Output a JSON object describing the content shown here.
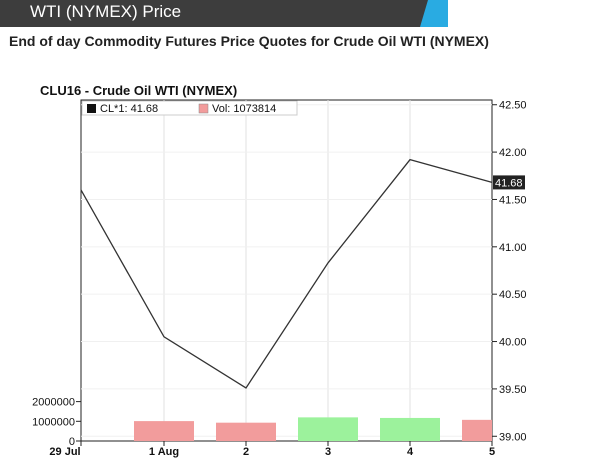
{
  "header": {
    "title": "WTI (NYMEX) Price"
  },
  "subtitle": "End of day Commodity Futures Price Quotes for Crude Oil WTI (NYMEX)",
  "colors": {
    "header_bg": "#3d3d3d",
    "header_accent": "#29abe2",
    "vol_up": "#9cf29c",
    "vol_down": "#f29c9c",
    "price_line": "#333333"
  },
  "chart_data": {
    "type": "line",
    "title": "CLU16 - Crude Oil WTI (NYMEX)",
    "legend": {
      "price": "CL*1: 41.68",
      "volume": "Vol: 1073814",
      "placement": "top-left"
    },
    "last_value_label": "41.68",
    "categories": [
      "29 Jul",
      "1 Aug",
      "2",
      "3",
      "4",
      "5"
    ],
    "series": [
      {
        "name": "CL*1",
        "values": [
          41.6,
          40.05,
          39.51,
          40.83,
          41.92,
          41.68
        ]
      },
      {
        "name": "Vol",
        "values": [
          null,
          1010000,
          930000,
          1200000,
          1170000,
          1073814
        ],
        "direction": [
          null,
          "down",
          "down",
          "up",
          "up",
          "down"
        ]
      }
    ],
    "price_axis": {
      "ylim": [
        38.95,
        42.55
      ],
      "ticks": [
        "39.00",
        "39.50",
        "40.00",
        "40.50",
        "41.00",
        "41.50",
        "42.00",
        "42.50"
      ],
      "position": "right"
    },
    "volume_axis": {
      "ylim": [
        0,
        3300000
      ],
      "ticks": [
        "0",
        "1000000",
        "2000000"
      ],
      "position": "left"
    },
    "grid": true
  }
}
